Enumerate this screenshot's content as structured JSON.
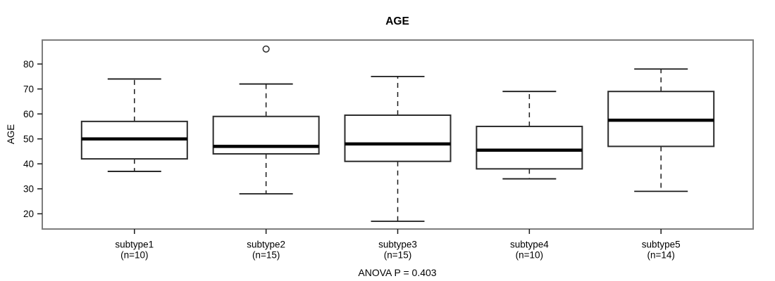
{
  "chart_data": {
    "type": "boxplot",
    "title": "AGE",
    "ylabel": "AGE",
    "xlabel": "",
    "annotation": "ANOVA P = 0.403",
    "yticks": [
      20,
      30,
      40,
      50,
      60,
      70,
      80
    ],
    "ylim": [
      13.9,
      89.6
    ],
    "grid": false,
    "legend": "none",
    "categories": [
      {
        "label": "subtype1",
        "sublabel": "(n=10)"
      },
      {
        "label": "subtype2",
        "sublabel": "(n=15)"
      },
      {
        "label": "subtype3",
        "sublabel": "(n=15)"
      },
      {
        "label": "subtype4",
        "sublabel": "(n=10)"
      },
      {
        "label": "subtype5",
        "sublabel": "(n=14)"
      }
    ],
    "series": [
      {
        "name": "subtype1",
        "n": 10,
        "whisker_low": 37,
        "q1": 42,
        "median": 50,
        "q3": 57,
        "whisker_high": 74,
        "outliers": []
      },
      {
        "name": "subtype2",
        "n": 15,
        "whisker_low": 28,
        "q1": 44,
        "median": 47,
        "q3": 59,
        "whisker_high": 72,
        "outliers": [
          86
        ]
      },
      {
        "name": "subtype3",
        "n": 15,
        "whisker_low": 17,
        "q1": 41,
        "median": 48,
        "q3": 59.5,
        "whisker_high": 75,
        "outliers": []
      },
      {
        "name": "subtype4",
        "n": 10,
        "whisker_low": 34,
        "q1": 38,
        "median": 45.5,
        "q3": 55,
        "whisker_high": 69,
        "outliers": []
      },
      {
        "name": "subtype5",
        "n": 14,
        "whisker_low": 29,
        "q1": 47,
        "median": 57.5,
        "q3": 69,
        "whisker_high": 78,
        "outliers": []
      }
    ],
    "colors": {
      "frame": "#7d7d7d",
      "box_stroke": "#2b2b2b",
      "median": "#000000",
      "whisker": "#1a1a1a",
      "text": "#000000",
      "background": "#ffffff"
    }
  }
}
